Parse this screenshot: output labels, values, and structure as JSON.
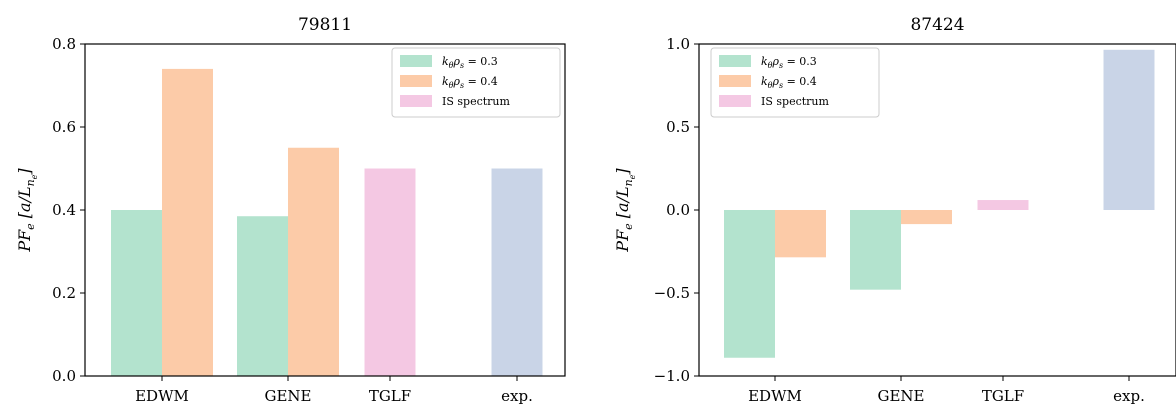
{
  "chart_data": [
    {
      "type": "bar",
      "title": "79811",
      "ylabel": "PF_e [a/L_{n_e}]",
      "ylabel_parts": {
        "main": "PF",
        "sub": "e",
        "bracket_open": "[a/L",
        "bracket_sub": "n",
        "bracket_subsub": "e",
        "bracket_close": "]"
      },
      "categories": [
        "EDWM",
        "GENE",
        "TGLF",
        "exp."
      ],
      "ylim": [
        0,
        0.8
      ],
      "yticks": [
        0.0,
        0.2,
        0.4,
        0.6,
        0.8
      ],
      "ytick_labels": [
        "0.0",
        "0.2",
        "0.4",
        "0.6",
        "0.8"
      ],
      "legend_position": "top-right",
      "series": [
        {
          "name": "k_θ ρ_s = 0.3",
          "legend_text": "kθρs = 0.3",
          "color": "#b3e3ce",
          "values": [
            0.4,
            0.385,
            null,
            null
          ],
          "offset": -1
        },
        {
          "name": "k_θ ρ_s = 0.4",
          "legend_text": "kθρs = 0.4",
          "color": "#fccba8",
          "values": [
            0.74,
            0.55,
            null,
            null
          ],
          "offset": 1
        },
        {
          "name": "IS spectrum",
          "legend_text": "IS spectrum",
          "color": "#f4c8e3",
          "values": [
            null,
            null,
            0.5,
            null
          ],
          "offset": 0
        },
        {
          "name": "exp.",
          "legend_text": null,
          "color": "#c9d4e7",
          "values": [
            null,
            null,
            null,
            0.5
          ],
          "offset": 0
        }
      ]
    },
    {
      "type": "bar",
      "title": "87424",
      "ylabel": "PF_e [a/L_{n_e}]",
      "ylabel_parts": {
        "main": "PF",
        "sub": "e",
        "bracket_open": "[a/L",
        "bracket_sub": "n",
        "bracket_subsub": "e",
        "bracket_close": "]"
      },
      "categories": [
        "EDWM",
        "GENE",
        "TGLF",
        "exp."
      ],
      "ylim": [
        -1.0,
        1.0
      ],
      "yticks": [
        -1.0,
        -0.5,
        0.0,
        0.5,
        1.0
      ],
      "ytick_labels": [
        "−1.0",
        "−0.5",
        "0.0",
        "0.5",
        "1.0"
      ],
      "legend_position": "top-left",
      "series": [
        {
          "name": "k_θ ρ_s = 0.3",
          "legend_text": "kθρs = 0.3",
          "color": "#b3e3ce",
          "values": [
            -0.89,
            -0.48,
            null,
            null
          ],
          "offset": -1
        },
        {
          "name": "k_θ ρ_s = 0.4",
          "legend_text": "kθρs = 0.4",
          "color": "#fccba8",
          "values": [
            -0.285,
            -0.085,
            null,
            null
          ],
          "offset": 1
        },
        {
          "name": "IS spectrum",
          "legend_text": "IS spectrum",
          "color": "#f4c8e3",
          "values": [
            null,
            null,
            0.06,
            null
          ],
          "offset": 0
        },
        {
          "name": "exp.",
          "legend_text": null,
          "color": "#c9d4e7",
          "values": [
            null,
            null,
            null,
            0.965
          ],
          "offset": 0
        }
      ]
    }
  ]
}
